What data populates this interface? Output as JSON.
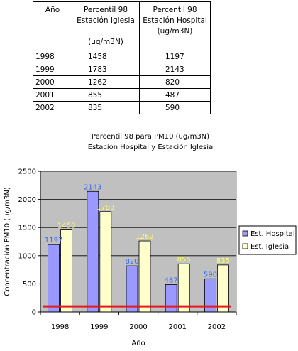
{
  "table": {
    "headers": {
      "year": [
        "Año"
      ],
      "iglesia": [
        "Percentil 98",
        "Estación Iglesia",
        "",
        "(ug/m3N)"
      ],
      "hospital": [
        "Percentil 98",
        "Estación Hospital",
        "(ug/m3N)"
      ]
    },
    "rows": [
      {
        "year": "1998",
        "iglesia": "1458",
        "hospital": "1197"
      },
      {
        "year": "1999",
        "iglesia": "1783",
        "hospital": "2143"
      },
      {
        "year": "2000",
        "iglesia": "1262",
        "hospital": "820"
      },
      {
        "year": "2001",
        "iglesia": "855",
        "hospital": "487"
      },
      {
        "year": "2002",
        "iglesia": "835",
        "hospital": "590"
      }
    ]
  },
  "chart_data": {
    "type": "bar",
    "title": "Percentil 98 para PM10 (ug/m3N)",
    "subtitle": "Estación Hospital y Estación Iglesia",
    "xlabel": "Año",
    "ylabel": "Concentración PM10 (ug/m3N)",
    "categories": [
      "1998",
      "1999",
      "2000",
      "2001",
      "2002"
    ],
    "series": [
      {
        "name": "Est. Hospital",
        "values": [
          1197,
          2143,
          820,
          487,
          590
        ],
        "color": "#9999ff",
        "label_color": "#3366ff"
      },
      {
        "name": "Est. Iglesia",
        "values": [
          1458,
          1783,
          1262,
          855,
          835
        ],
        "color": "#ffffcc",
        "label_color": "#ffff66"
      }
    ],
    "yticks": [
      "0",
      "500",
      "1000",
      "1500",
      "2000",
      "2500"
    ],
    "ylim": [
      0,
      2500
    ],
    "reference_line": {
      "value": 100,
      "color": "#e31a1c"
    },
    "plot_background": "#c0c0c0",
    "grid": true,
    "legend_position": "right"
  }
}
